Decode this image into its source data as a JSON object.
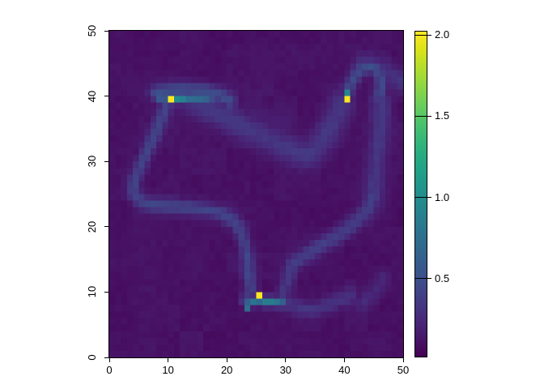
{
  "page": {
    "background": "#ffffff",
    "axis_color": "#000000"
  },
  "chart_data": {
    "type": "heatmap",
    "title": "",
    "xlabel": "",
    "ylabel": "",
    "grid_cols": 50,
    "grid_rows": 50,
    "xlim": [
      0,
      50
    ],
    "ylim": [
      0,
      50
    ],
    "zlim": [
      0.015,
      2.025
    ],
    "grid": false,
    "colormap": "viridis",
    "colormap_stops": [
      "#440154",
      "#481567",
      "#482677",
      "#453781",
      "#404788",
      "#39568C",
      "#33638D",
      "#2D708E",
      "#287D8E",
      "#238A8D",
      "#1F968B",
      "#20A387",
      "#29AF7F",
      "#3CBB75",
      "#55C667",
      "#73D055",
      "#95D840",
      "#B8DE29",
      "#DCE319",
      "#FDE725"
    ],
    "x_ticks": [
      {
        "v": 0,
        "label": "0"
      },
      {
        "v": 10,
        "label": "10"
      },
      {
        "v": 20,
        "label": "20"
      },
      {
        "v": 30,
        "label": "30"
      },
      {
        "v": 40,
        "label": "40"
      },
      {
        "v": 50,
        "label": "50"
      }
    ],
    "y_ticks": [
      {
        "v": 0,
        "label": "0"
      },
      {
        "v": 10,
        "label": "10"
      },
      {
        "v": 20,
        "label": "20"
      },
      {
        "v": 30,
        "label": "30"
      },
      {
        "v": 40,
        "label": "40"
      },
      {
        "v": 50,
        "label": "50"
      }
    ],
    "colorbar": {
      "position": "right",
      "ticks": [
        {
          "v": 0.5,
          "label": "0.5"
        },
        {
          "v": 1.0,
          "label": "1.0"
        },
        {
          "v": 1.5,
          "label": "1.5"
        },
        {
          "v": 2.0,
          "label": "2.0"
        }
      ]
    },
    "background_value": 0.1,
    "noise_amplitude_fine": 0.04,
    "noise_amplitude_coarse": 0.035,
    "noise_seed": 7,
    "hotspots": [
      {
        "col": 10,
        "row": 39,
        "value": 2.02
      },
      {
        "col": 40,
        "row": 39,
        "value": 2.02
      },
      {
        "col": 25,
        "row": 9,
        "value": 2.02
      }
    ],
    "bright_cells": [
      [
        11,
        39,
        1.0
      ],
      [
        12,
        39,
        0.9
      ],
      [
        13,
        39,
        0.74
      ],
      [
        14,
        39,
        0.72
      ],
      [
        15,
        39,
        0.7
      ],
      [
        16,
        39,
        0.64
      ],
      [
        17,
        39,
        0.48
      ],
      [
        40,
        40,
        0.95
      ],
      [
        23,
        7,
        0.72
      ],
      [
        23,
        8,
        0.6
      ],
      [
        24,
        8,
        0.78
      ],
      [
        25,
        8,
        0.7
      ],
      [
        26,
        8,
        0.85
      ],
      [
        27,
        8,
        0.85
      ],
      [
        28,
        8,
        0.78
      ]
    ],
    "trails": [
      {
        "name": "left-dot-east-band",
        "points": [
          [
            11.2,
            39.5
          ],
          [
            13.5,
            39.5
          ],
          [
            16.8,
            39.6
          ]
        ],
        "intensity": 0.5,
        "sigma": 0.6
      },
      {
        "name": "left-dot-west",
        "points": [
          [
            8.6,
            39.5
          ],
          [
            9.5,
            39.5
          ]
        ],
        "intensity": 0.45,
        "sigma": 0.6
      },
      {
        "name": "left-dot-arc",
        "points": [
          [
            8.0,
            40.4
          ],
          [
            10.5,
            40.8
          ],
          [
            13.5,
            40.9
          ],
          [
            16.5,
            40.7
          ],
          [
            19.0,
            40.2
          ],
          [
            20.5,
            39.2
          ]
        ],
        "intensity": 0.38,
        "sigma": 0.85
      },
      {
        "name": "mid-v-wide",
        "points": [
          [
            14.5,
            39.2
          ],
          [
            17.0,
            38.0
          ],
          [
            20.0,
            36.7
          ],
          [
            23.0,
            35.3
          ],
          [
            26.0,
            33.9
          ],
          [
            29.0,
            32.5
          ],
          [
            32.0,
            31.3
          ],
          [
            33.8,
            31.1
          ],
          [
            35.5,
            32.3
          ],
          [
            37.0,
            34.4
          ],
          [
            38.3,
            36.6
          ],
          [
            39.5,
            38.7
          ]
        ],
        "intensity": 0.24,
        "sigma": 1.5
      },
      {
        "name": "mid-v-core",
        "points": [
          [
            16.5,
            38.6
          ],
          [
            19.5,
            37.3
          ],
          [
            22.5,
            36.0
          ],
          [
            25.5,
            34.6
          ],
          [
            28.5,
            33.1
          ],
          [
            31.5,
            31.6
          ],
          [
            33.5,
            31.1
          ]
        ],
        "intensity": 0.13,
        "sigma": 0.8
      },
      {
        "name": "v-inner-haze",
        "points": [
          [
            24.5,
            36.6
          ],
          [
            27.0,
            35.2
          ],
          [
            29.5,
            33.8
          ]
        ],
        "intensity": 0.1,
        "sigma": 2.2
      },
      {
        "name": "right-dot-hook",
        "points": [
          [
            40.6,
            40.9
          ],
          [
            41.3,
            42.3
          ],
          [
            42.3,
            43.7
          ],
          [
            43.7,
            44.5
          ],
          [
            45.1,
            44.3
          ],
          [
            46.1,
            43.1
          ],
          [
            46.4,
            41.6
          ],
          [
            46.0,
            40.2
          ]
        ],
        "intensity": 0.38,
        "sigma": 0.75
      },
      {
        "name": "top-right-streak",
        "points": [
          [
            43.3,
            45.1
          ],
          [
            45.8,
            44.3
          ],
          [
            48.3,
            43.1
          ],
          [
            49.8,
            42.2
          ]
        ],
        "intensity": 0.2,
        "sigma": 1.1
      },
      {
        "name": "left-south-trail",
        "points": [
          [
            9.7,
            38.5
          ],
          [
            8.8,
            36.4
          ],
          [
            7.8,
            34.2
          ],
          [
            6.6,
            31.8
          ],
          [
            5.3,
            29.4
          ],
          [
            4.3,
            27.2
          ],
          [
            4.1,
            25.3
          ],
          [
            5.3,
            23.9
          ],
          [
            7.5,
            23.3
          ],
          [
            10.5,
            23.1
          ],
          [
            13.5,
            22.9
          ],
          [
            16.5,
            22.6
          ],
          [
            18.9,
            22.1
          ],
          [
            21.1,
            20.9
          ],
          [
            22.5,
            19.1
          ],
          [
            23.2,
            16.9
          ],
          [
            23.6,
            14.6
          ],
          [
            23.8,
            12.3
          ],
          [
            24.1,
            10.3
          ]
        ],
        "intensity": 0.32,
        "sigma": 0.8
      },
      {
        "name": "bottom-west-approach",
        "points": [
          [
            23.3,
            8.8
          ],
          [
            24.3,
            8.6
          ]
        ],
        "intensity": 0.55,
        "sigma": 0.6
      },
      {
        "name": "bottom-east-band",
        "points": [
          [
            26.4,
            8.5
          ],
          [
            28.0,
            8.5
          ],
          [
            29.7,
            8.4
          ]
        ],
        "intensity": 0.55,
        "sigma": 0.6
      },
      {
        "name": "bottom-east-faint",
        "points": [
          [
            29.7,
            8.4
          ],
          [
            32.0,
            7.7
          ],
          [
            34.5,
            7.3
          ],
          [
            37.0,
            7.9
          ],
          [
            39.0,
            8.7
          ],
          [
            40.8,
            9.4
          ]
        ],
        "intensity": 0.2,
        "sigma": 0.95
      },
      {
        "name": "bottom-diagonal-link",
        "points": [
          [
            29.5,
            9.8
          ],
          [
            30.5,
            12.0
          ],
          [
            31.2,
            14.2
          ]
        ],
        "intensity": 0.24,
        "sigma": 0.85
      },
      {
        "name": "long-diagonal",
        "points": [
          [
            31.2,
            14.2
          ],
          [
            33.5,
            15.6
          ],
          [
            36.0,
            17.0
          ],
          [
            38.5,
            18.5
          ],
          [
            40.8,
            19.9
          ],
          [
            42.7,
            21.3
          ],
          [
            44.1,
            22.9
          ],
          [
            44.8,
            24.6
          ]
        ],
        "intensity": 0.28,
        "sigma": 0.9
      },
      {
        "name": "right-vertical-band",
        "points": [
          [
            44.8,
            24.6
          ],
          [
            45.1,
            27.2
          ],
          [
            45.5,
            30.0
          ],
          [
            45.9,
            32.8
          ],
          [
            46.2,
            35.6
          ],
          [
            46.4,
            38.1
          ],
          [
            46.1,
            40.0
          ]
        ],
        "intensity": 0.22,
        "sigma": 1.2
      },
      {
        "name": "bottom-right-faint",
        "points": [
          [
            43.2,
            8.2
          ],
          [
            45.1,
            9.9
          ],
          [
            46.7,
            12.0
          ]
        ],
        "intensity": 0.15,
        "sigma": 0.9
      }
    ]
  }
}
